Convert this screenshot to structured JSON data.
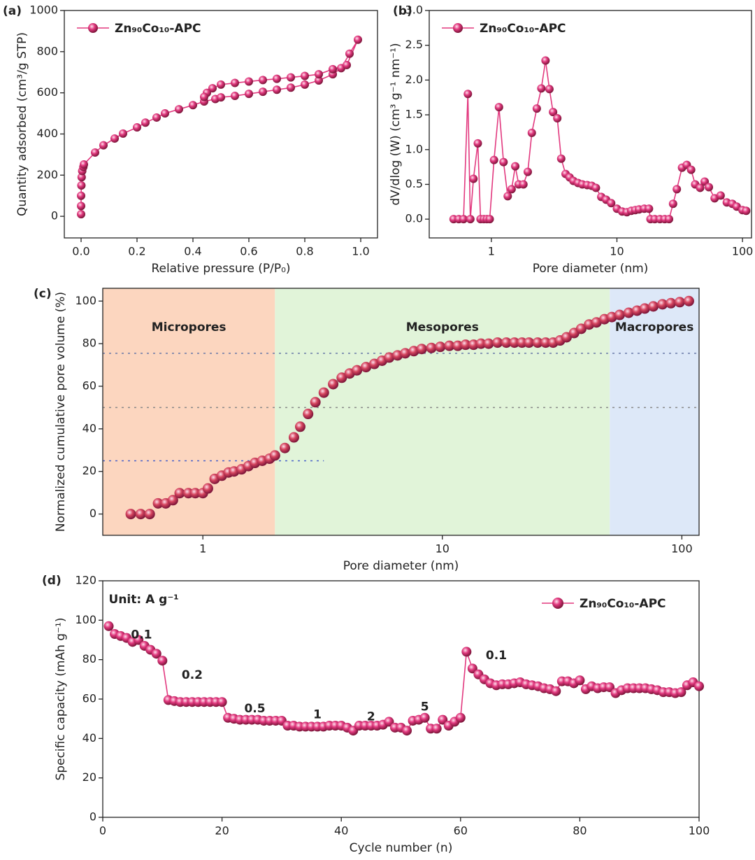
{
  "chart_data": [
    {
      "type": "line",
      "panel_label": "(a)",
      "xlabel": "Relative pressure (P/P₀)",
      "ylabel": "Quantity adsorbed (cm³/g STP)",
      "xlim": [
        -0.06,
        1.06
      ],
      "ylim": [
        -105,
        1000
      ],
      "xticks": [
        {
          "value": 0,
          "label": "0.0"
        },
        0.2,
        0.4,
        0.6,
        0.8,
        {
          "value": 1,
          "label": "1.0"
        }
      ],
      "yticks": [
        0,
        200,
        400,
        600,
        800,
        1000
      ],
      "legend": "upper left",
      "series": [
        {
          "name": "Zn₉₀Co₁₀-APC",
          "color": "#e2397f",
          "x": [
            0.0,
            0.0,
            0.0,
            0.001,
            0.002,
            0.004,
            0.008,
            0.01,
            0.05,
            0.08,
            0.12,
            0.15,
            0.2,
            0.23,
            0.27,
            0.3,
            0.35,
            0.4,
            0.44,
            0.48,
            0.5,
            0.55,
            0.6,
            0.65,
            0.7,
            0.75,
            0.8,
            0.85,
            0.9,
            0.93,
            0.96,
            0.99,
            0.95,
            0.9,
            0.85,
            0.8,
            0.75,
            0.7,
            0.65,
            0.6,
            0.55,
            0.5,
            0.47,
            0.45,
            0.44
          ],
          "values": [
            10,
            50,
            100,
            150,
            190,
            220,
            240,
            252,
            310,
            345,
            378,
            402,
            432,
            455,
            480,
            500,
            520,
            540,
            558,
            570,
            578,
            585,
            595,
            605,
            615,
            625,
            640,
            660,
            690,
            720,
            790,
            858,
            735,
            715,
            690,
            682,
            675,
            668,
            662,
            655,
            648,
            640,
            622,
            600,
            580
          ]
        }
      ]
    },
    {
      "type": "line",
      "panel_label": "(b)",
      "xlabel": "Pore diameter (nm)",
      "ylabel": "dV/dlog (W) (cm³ g⁻¹ nm⁻¹)",
      "xscale": "log",
      "xlim": [
        0.32,
        118
      ],
      "ylim": [
        -0.27,
        3.0
      ],
      "xticks": [
        1,
        10,
        100
      ],
      "yticks": [
        {
          "value": 0,
          "label": "0.0"
        },
        0.5,
        {
          "value": 1,
          "label": "1.0"
        },
        1.5,
        {
          "value": 2,
          "label": "2.0"
        },
        2.5,
        {
          "value": 3,
          "label": "3.0"
        }
      ],
      "legend": "upper left",
      "series": [
        {
          "name": "Zn₉₀Co₁₀-APC",
          "color": "#e2397f",
          "x": [
            0.5,
            0.55,
            0.6,
            0.65,
            0.68,
            0.72,
            0.78,
            0.82,
            0.87,
            0.92,
            0.97,
            1.05,
            1.15,
            1.25,
            1.35,
            1.45,
            1.55,
            1.65,
            1.8,
            1.95,
            2.1,
            2.3,
            2.5,
            2.7,
            2.9,
            3.1,
            3.35,
            3.6,
            3.9,
            4.2,
            4.5,
            4.9,
            5.3,
            5.8,
            6.3,
            6.8,
            7.5,
            8.2,
            9,
            10,
            11,
            12,
            13,
            14,
            15,
            16.5,
            18,
            18.5,
            20,
            22,
            24,
            26,
            28,
            30,
            33,
            36,
            39,
            42,
            46,
            50,
            54,
            60,
            67,
            75,
            83,
            90,
            100,
            107
          ],
          "values": [
            0,
            0,
            0,
            1.8,
            0,
            0.58,
            1.09,
            0,
            0,
            0,
            0,
            0.85,
            1.61,
            0.82,
            0.33,
            0.43,
            0.76,
            0.5,
            0.5,
            0.68,
            1.24,
            1.59,
            1.88,
            2.28,
            1.87,
            1.54,
            1.45,
            0.87,
            0.65,
            0.6,
            0.55,
            0.52,
            0.5,
            0.49,
            0.48,
            0.45,
            0.32,
            0.28,
            0.23,
            0.15,
            0.11,
            0.1,
            0.12,
            0.13,
            0.14,
            0.15,
            0.15,
            0,
            0,
            0,
            0,
            0,
            0.22,
            0.43,
            0.74,
            0.78,
            0.71,
            0.5,
            0.45,
            0.54,
            0.46,
            0.3,
            0.34,
            0.24,
            0.22,
            0.18,
            0.13,
            0.12
          ]
        }
      ]
    },
    {
      "type": "scatter",
      "panel_label": "(c)",
      "xlabel": "Pore diameter (nm)",
      "ylabel": "Normalized cumulative pore volume (%)",
      "xscale": "log",
      "xlim": [
        0.382,
        118
      ],
      "ylim": [
        -10,
        106
      ],
      "xticks": [
        1,
        10,
        100
      ],
      "yticks": [
        0,
        20,
        40,
        60,
        80,
        100
      ],
      "region_bounds": [
        2,
        50
      ],
      "regions": [
        {
          "label": "Micropores",
          "color": "#fcd6bf"
        },
        {
          "label": "Mesopores",
          "color": "#e1f4d9"
        },
        {
          "label": "Macropores",
          "color": "#dde8f8"
        }
      ],
      "reference_lines": [
        {
          "y": 25,
          "x_end": 3.2,
          "color": "#4a63c8"
        },
        {
          "y": 50,
          "color": "#888888"
        },
        {
          "y": 75.5,
          "color": "#6a7aa8"
        }
      ],
      "series": [
        {
          "color": "#d6455f",
          "x": [
            0.5,
            0.55,
            0.6,
            0.65,
            0.7,
            0.75,
            0.8,
            0.87,
            0.93,
            1.0,
            1.05,
            1.12,
            1.2,
            1.28,
            1.35,
            1.45,
            1.55,
            1.65,
            1.77,
            1.9,
            2.0,
            2.2,
            2.4,
            2.55,
            2.75,
            2.95,
            3.2,
            3.5,
            3.8,
            4.1,
            4.4,
            4.8,
            5.2,
            5.6,
            6.0,
            6.5,
            7.0,
            7.6,
            8.2,
            9,
            9.8,
            10.7,
            11.6,
            12.5,
            13.5,
            14.5,
            15.6,
            17,
            18.5,
            20,
            21.5,
            23,
            25,
            27,
            29,
            31,
            33,
            35.5,
            38,
            41,
            44,
            47.5,
            51,
            55,
            60,
            65,
            70,
            76,
            83,
            90,
            98,
            107
          ],
          "values": [
            0,
            0,
            0,
            5,
            5,
            6.5,
            9.8,
            9.8,
            9.8,
            9.8,
            12,
            16.5,
            18,
            19.5,
            20,
            21,
            22.5,
            24,
            25,
            26,
            27.5,
            31,
            36,
            41,
            47,
            52.5,
            57,
            61,
            64,
            66,
            67.5,
            69,
            70.5,
            72,
            73.5,
            74.5,
            75.5,
            76.5,
            77.5,
            78,
            78.5,
            79,
            79,
            79.5,
            79.5,
            80,
            80,
            80.5,
            80.5,
            80.5,
            80.5,
            80.5,
            80.5,
            80.5,
            80.5,
            81.5,
            83,
            85,
            87,
            89,
            90,
            91.5,
            92.5,
            93.5,
            94.5,
            95.5,
            96.5,
            97.5,
            98.5,
            99,
            99.5,
            100
          ]
        }
      ]
    },
    {
      "type": "line",
      "panel_label": "(d)",
      "xlabel": "Cycle number (n)",
      "ylabel": "Specific capacity (mAh g⁻¹)",
      "xlim": [
        0,
        100
      ],
      "ylim": [
        0,
        120
      ],
      "xticks": [
        0,
        20,
        40,
        60,
        80,
        100
      ],
      "yticks": [
        0,
        20,
        40,
        60,
        80,
        100,
        120
      ],
      "legend": "upper right",
      "annotations": [
        {
          "text": "Unit: A g⁻¹",
          "x": 1,
          "y": 110.5
        },
        {
          "text": "0.1",
          "x": 6.5,
          "y": 92.5
        },
        {
          "text": "0.2",
          "x": 15,
          "y": 72
        },
        {
          "text": "0.5",
          "x": 25.5,
          "y": 55
        },
        {
          "text": "1",
          "x": 36,
          "y": 52
        },
        {
          "text": "2",
          "x": 45,
          "y": 51
        },
        {
          "text": "5",
          "x": 54,
          "y": 56
        },
        {
          "text": "0.1",
          "x": 66,
          "y": 82
        }
      ],
      "series": [
        {
          "name": "Zn₉₀Co₁₀-APC",
          "color": "#e2397f",
          "x": [
            1,
            2,
            3,
            4,
            5,
            6,
            7,
            8,
            9,
            10,
            11,
            12,
            13,
            14,
            15,
            16,
            17,
            18,
            19,
            20,
            21,
            22,
            23,
            24,
            25,
            26,
            27,
            28,
            29,
            30,
            31,
            32,
            33,
            34,
            35,
            36,
            37,
            38,
            39,
            40,
            41,
            42,
            43,
            44,
            45,
            46,
            47,
            48,
            49,
            50,
            51,
            52,
            53,
            54,
            55,
            56,
            57,
            58,
            59,
            60,
            61,
            62,
            63,
            64,
            65,
            66,
            67,
            68,
            69,
            70,
            71,
            72,
            73,
            74,
            75,
            76,
            77,
            78,
            79,
            80,
            81,
            82,
            83,
            84,
            85,
            86,
            87,
            88,
            89,
            90,
            91,
            92,
            93,
            94,
            95,
            96,
            97,
            98,
            99,
            100
          ],
          "values": [
            97,
            93,
            92,
            91,
            89,
            90,
            87,
            85,
            83,
            79.5,
            59.5,
            59,
            58.5,
            58.5,
            58.5,
            58.5,
            58.5,
            58.5,
            58.5,
            58.5,
            50.5,
            50,
            49.5,
            49.5,
            49.5,
            49.5,
            49,
            49,
            49,
            49,
            46.5,
            46.5,
            46,
            46,
            46,
            46,
            46,
            46.5,
            46.5,
            46.5,
            45.5,
            44,
            46.5,
            46.5,
            46.5,
            46.5,
            47,
            48.5,
            45.5,
            45.5,
            44,
            49,
            49.5,
            50.5,
            45,
            45,
            49.5,
            46.5,
            48.5,
            50.5,
            84,
            75.5,
            72.5,
            70,
            68,
            67,
            67.5,
            67.5,
            68,
            68.5,
            67.5,
            67,
            66.5,
            65.5,
            65,
            64,
            69,
            69,
            68,
            69.5,
            65,
            66.5,
            65.5,
            66,
            66,
            63,
            64.5,
            65.5,
            65.5,
            65.5,
            65.5,
            65,
            64.5,
            63.5,
            63.5,
            63,
            63.5,
            67,
            68.5,
            66.5
          ]
        }
      ]
    }
  ]
}
